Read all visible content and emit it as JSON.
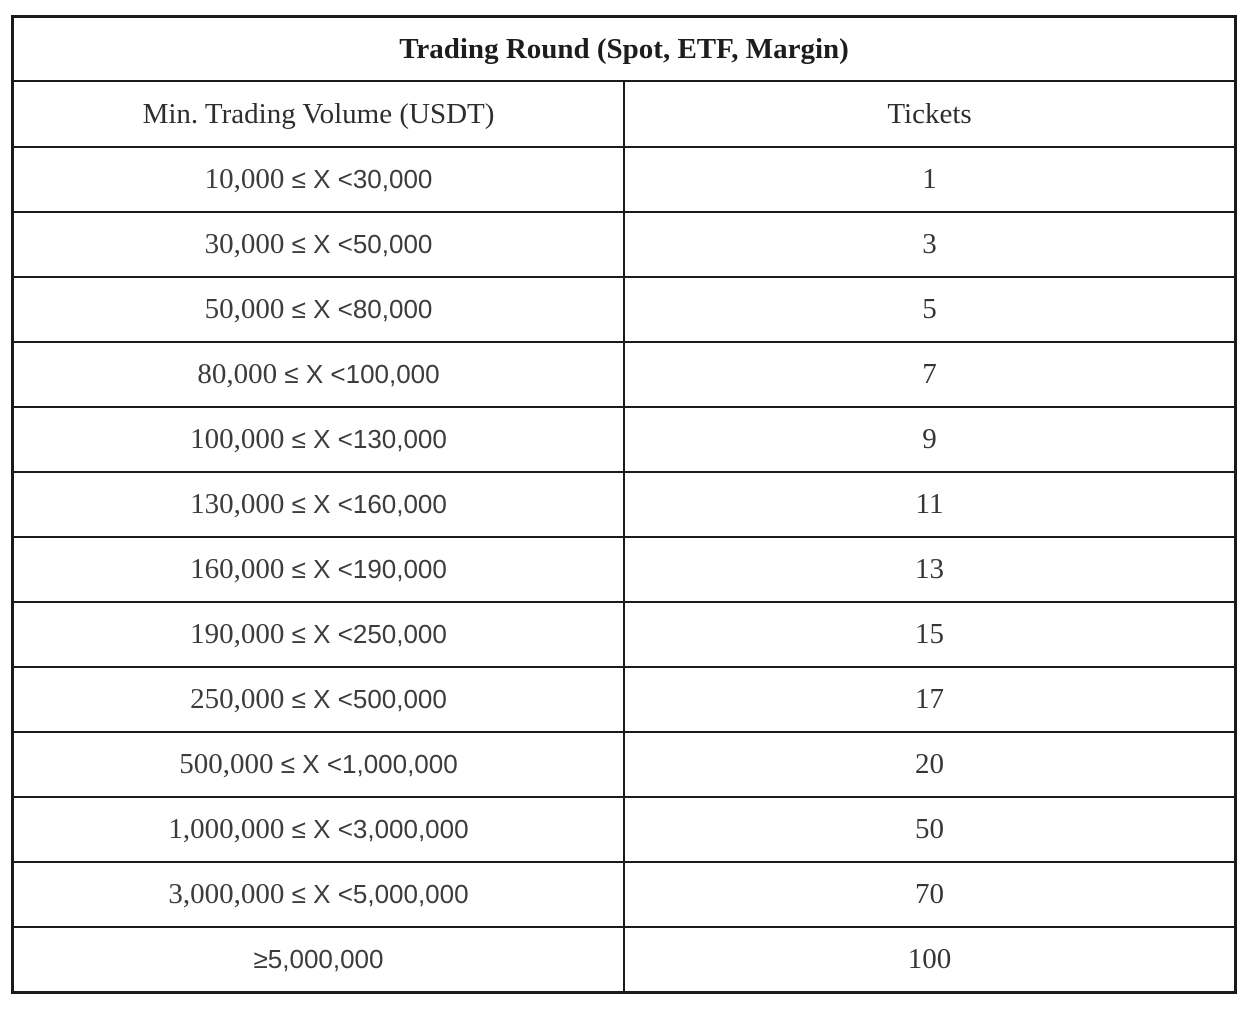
{
  "page": {
    "background": "#ffffff"
  },
  "colors": {
    "border": "#1b1b1b",
    "title_text": "#1d1d1d",
    "header_text": "#2e2e2e",
    "cell_text": "#3c3c3c"
  },
  "table": {
    "title": "Trading Round (Spot, ETF, Margin)",
    "columns": [
      "Min. Trading Volume (USDT)",
      "Tickets"
    ],
    "rows": [
      {
        "volume": "10,000 ≤ X <30,000",
        "tickets": "1"
      },
      {
        "volume": "30,000 ≤ X <50,000",
        "tickets": "3"
      },
      {
        "volume": "50,000 ≤ X <80,000",
        "tickets": "5"
      },
      {
        "volume": "80,000 ≤ X <100,000",
        "tickets": "7"
      },
      {
        "volume": "100,000 ≤ X <130,000",
        "tickets": "9"
      },
      {
        "volume": "130,000 ≤ X <160,000",
        "tickets": "11"
      },
      {
        "volume": "160,000 ≤ X <190,000",
        "tickets": "13"
      },
      {
        "volume": "190,000 ≤ X <250,000",
        "tickets": "15"
      },
      {
        "volume": "250,000 ≤ X <500,000",
        "tickets": "17"
      },
      {
        "volume": "500,000 ≤ X <1,000,000",
        "tickets": "20"
      },
      {
        "volume": "1,000,000 ≤ X <3,000,000",
        "tickets": "50"
      },
      {
        "volume": "3,000,000 ≤ X <5,000,000",
        "tickets": "70"
      },
      {
        "volume": "≥5,000,000",
        "tickets": "100"
      }
    ]
  }
}
